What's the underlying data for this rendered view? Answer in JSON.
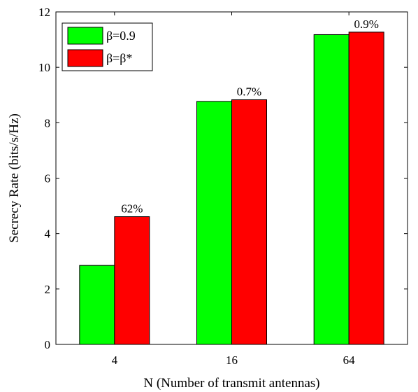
{
  "chart_data": {
    "type": "bar",
    "categories": [
      "4",
      "16",
      "64"
    ],
    "series": [
      {
        "name": "β=0.9",
        "values": [
          2.85,
          8.77,
          11.18
        ],
        "color": "#00ff00"
      },
      {
        "name": "β=β*",
        "values": [
          4.61,
          8.83,
          11.27
        ],
        "color": "#ff0000"
      }
    ],
    "data_labels": [
      "62%",
      "0.7%",
      "0.9%"
    ],
    "xlabel": "N (Number of transmit antennas)",
    "ylabel": "Secrecy Rate (bits/s/Hz)",
    "ylim": [
      0,
      12
    ],
    "yticks": [
      "0",
      "2",
      "4",
      "6",
      "8",
      "10",
      "12"
    ],
    "legend_position": "top-left",
    "grid": false
  }
}
